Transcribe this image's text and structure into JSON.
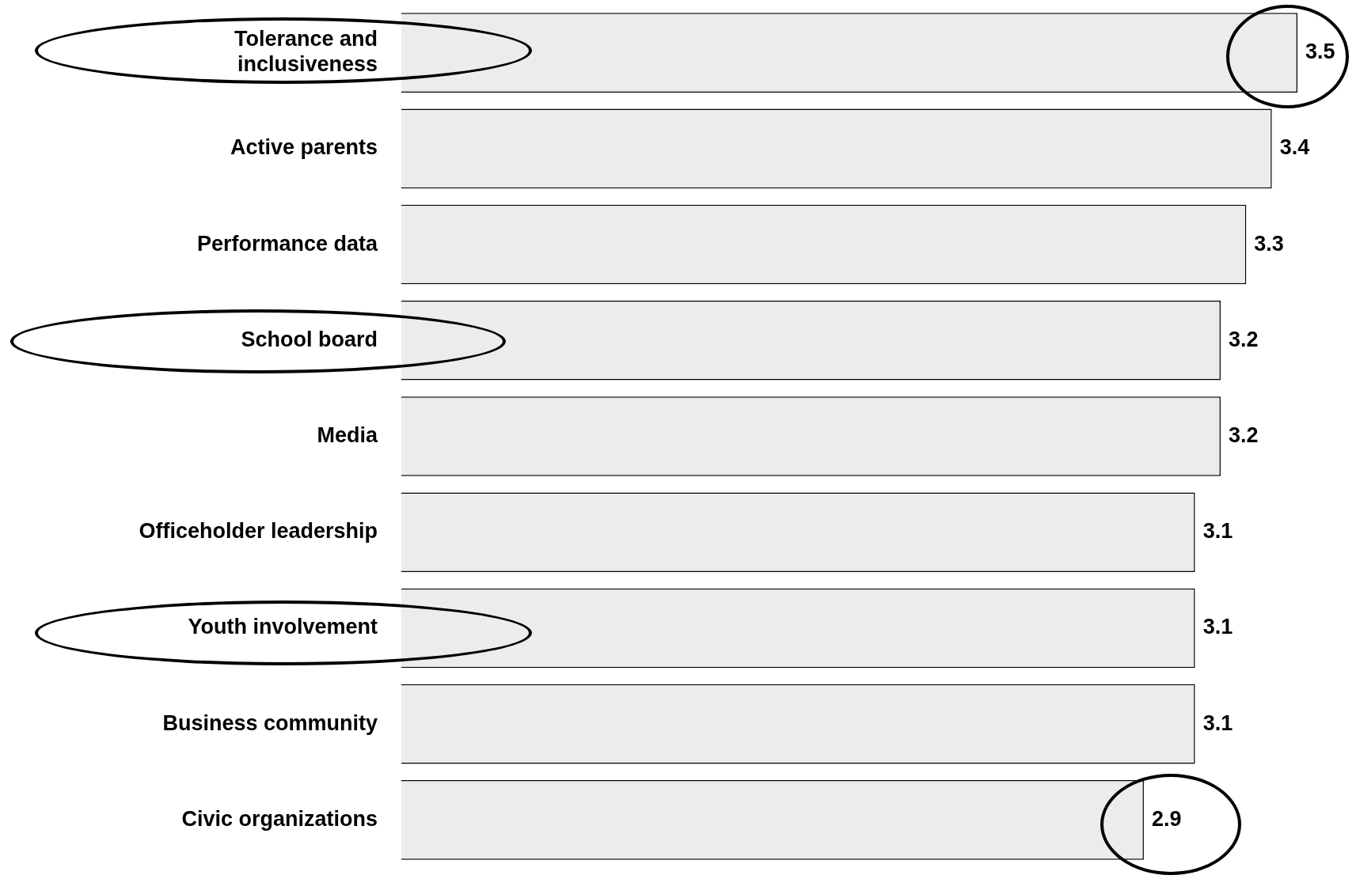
{
  "chart_data": {
    "type": "bar",
    "orientation": "horizontal",
    "categories": [
      "Tolerance and inclusiveness",
      "Active parents",
      "Performance data",
      "School board",
      "Media",
      "Officeholder leadership",
      "Youth involvement",
      "Business community",
      "Civic organizations"
    ],
    "values": [
      3.5,
      3.4,
      3.3,
      3.2,
      3.2,
      3.1,
      3.1,
      3.1,
      2.9
    ],
    "color": "#ececec",
    "data_labels": true,
    "grid": false,
    "legend": false
  }
}
